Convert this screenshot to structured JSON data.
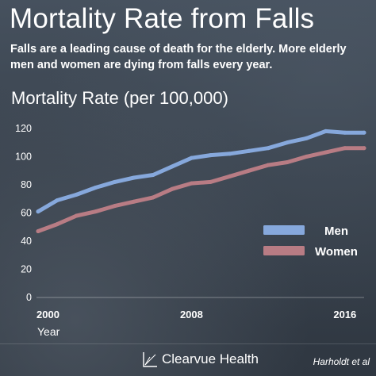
{
  "header": {
    "title": "Mortality Rate from Falls",
    "subtitle": "Falls are a leading cause of death for the elderly. More elderly men and women are dying from falls every year."
  },
  "chart_data": {
    "type": "line",
    "title": "Mortality Rate (per 100,000)",
    "xlabel": "Year",
    "ylabel": "",
    "x": [
      2000,
      2001,
      2002,
      2003,
      2004,
      2005,
      2006,
      2007,
      2008,
      2009,
      2010,
      2011,
      2012,
      2013,
      2014,
      2015,
      2016,
      2017
    ],
    "xticks": [
      "2000",
      "2008",
      "2016"
    ],
    "yticks": [
      0,
      20,
      40,
      60,
      80,
      100,
      120
    ],
    "ylim": [
      0,
      125
    ],
    "xlim": [
      2000,
      2017
    ],
    "grid": false,
    "legend_position": "right",
    "series": [
      {
        "name": "Men",
        "color": "#86a8dc",
        "values": [
          61,
          69,
          73,
          78,
          82,
          85,
          87,
          93,
          99,
          101,
          102,
          104,
          106,
          110,
          113,
          118,
          117,
          117
        ]
      },
      {
        "name": "Women",
        "color": "#b87c84",
        "values": [
          47,
          52,
          58,
          61,
          65,
          68,
          71,
          77,
          81,
          82,
          86,
          90,
          94,
          96,
          100,
          103,
          106,
          106
        ]
      }
    ]
  },
  "footer": {
    "brand": "Clearvue Health",
    "source": "Harholdt et al"
  }
}
